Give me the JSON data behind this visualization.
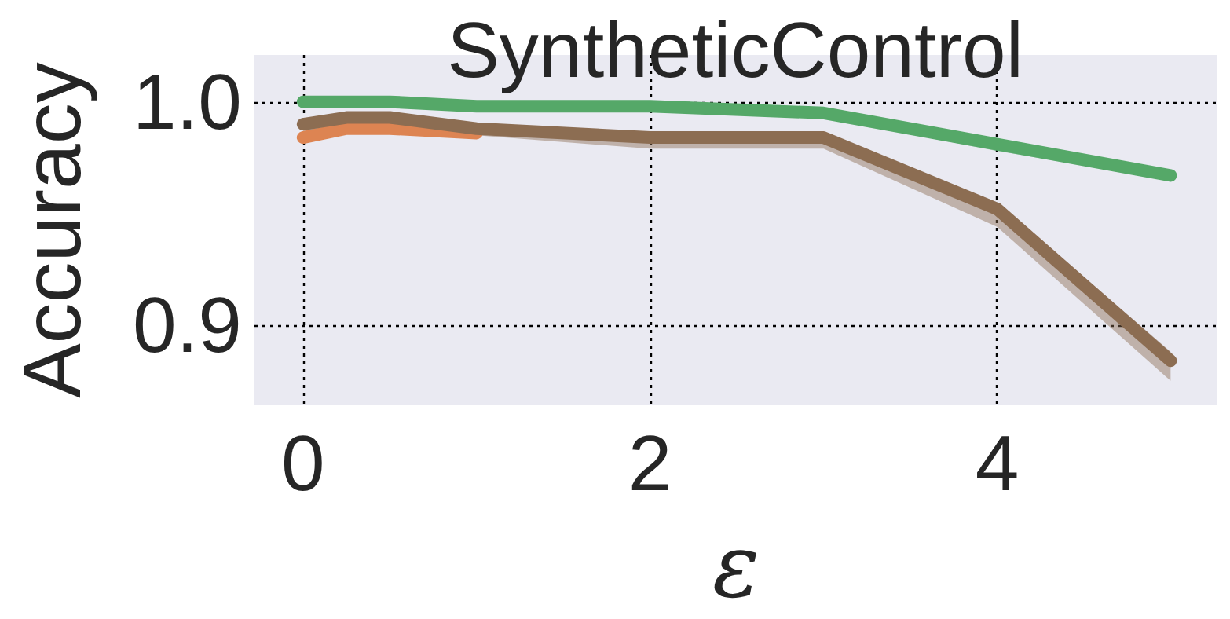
{
  "chart_data": {
    "type": "line",
    "title": "SyntheticControl",
    "xlabel": "ε",
    "ylabel": "Accuracy",
    "x": [
      0,
      0.25,
      0.5,
      1,
      2,
      3,
      4,
      5
    ],
    "xlim": [
      -0.28,
      5.27
    ],
    "ylim": [
      0.864,
      1.021
    ],
    "xticks": [
      0,
      2,
      4
    ],
    "yticks": [
      {
        "value": 0.9,
        "label": "0.9"
      },
      {
        "value": 1.0,
        "label": "1.0"
      }
    ],
    "grid": true,
    "line_style": "solid",
    "series": [
      {
        "color": "#dd8452",
        "values": [
          0.984,
          0.988,
          0.988,
          0.986,
          null,
          null,
          null,
          null
        ]
      },
      {
        "color": "#8c6d52",
        "values": [
          0.99,
          0.993,
          0.993,
          0.988,
          0.984,
          0.984,
          0.952,
          0.884
        ],
        "lower": [
          0.985,
          0.988,
          0.986,
          0.985,
          0.979,
          0.979,
          0.944,
          0.875
        ],
        "upper": [
          0.992,
          0.995,
          0.995,
          0.99,
          0.986,
          0.986,
          0.955,
          0.888
        ]
      },
      {
        "color": "#55a868",
        "values": [
          1.0,
          1.0,
          1.0,
          0.998,
          0.998,
          0.995,
          0.981,
          0.967
        ],
        "lower": [
          0.999,
          0.999,
          0.999,
          0.996,
          0.996,
          0.993,
          0.978,
          0.965
        ],
        "upper": [
          1.0,
          1.0,
          1.0,
          0.999,
          0.999,
          0.996,
          0.982,
          0.968
        ]
      }
    ]
  }
}
